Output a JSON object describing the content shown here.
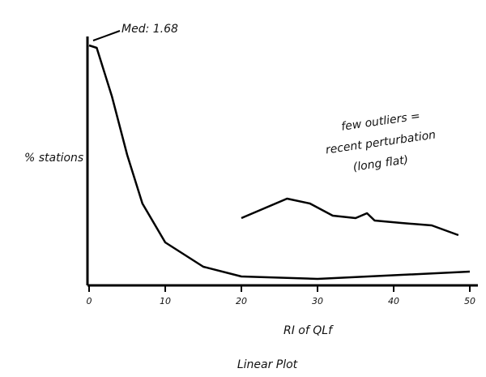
{
  "chart_data": {
    "type": "line",
    "ylabel": "% stations",
    "xlabel": "RI of QLf",
    "subtitle": "Linear Plot",
    "annotation": "Med: 1.68",
    "note_lines": [
      "few outliers =",
      "recent perturbation",
      "(long flat)"
    ],
    "xlim": [
      0,
      50
    ],
    "xticks": [
      0,
      10,
      20,
      30,
      40,
      50
    ],
    "ylim": [
      0,
      100
    ],
    "series": [
      {
        "color": "#000000",
        "x": [
          0,
          1,
          3,
          5,
          7,
          10,
          15,
          20,
          30,
          50
        ],
        "values": [
          98,
          97,
          77,
          53,
          33,
          17,
          7,
          3,
          2,
          5
        ]
      },
      {
        "color": "#000000",
        "x": [
          20,
          23,
          26,
          29,
          32,
          35,
          36.5,
          37.5,
          41,
          45,
          48.5
        ],
        "values": [
          27,
          31,
          35,
          33,
          28,
          27,
          29,
          26,
          25,
          24,
          20
        ]
      }
    ]
  }
}
